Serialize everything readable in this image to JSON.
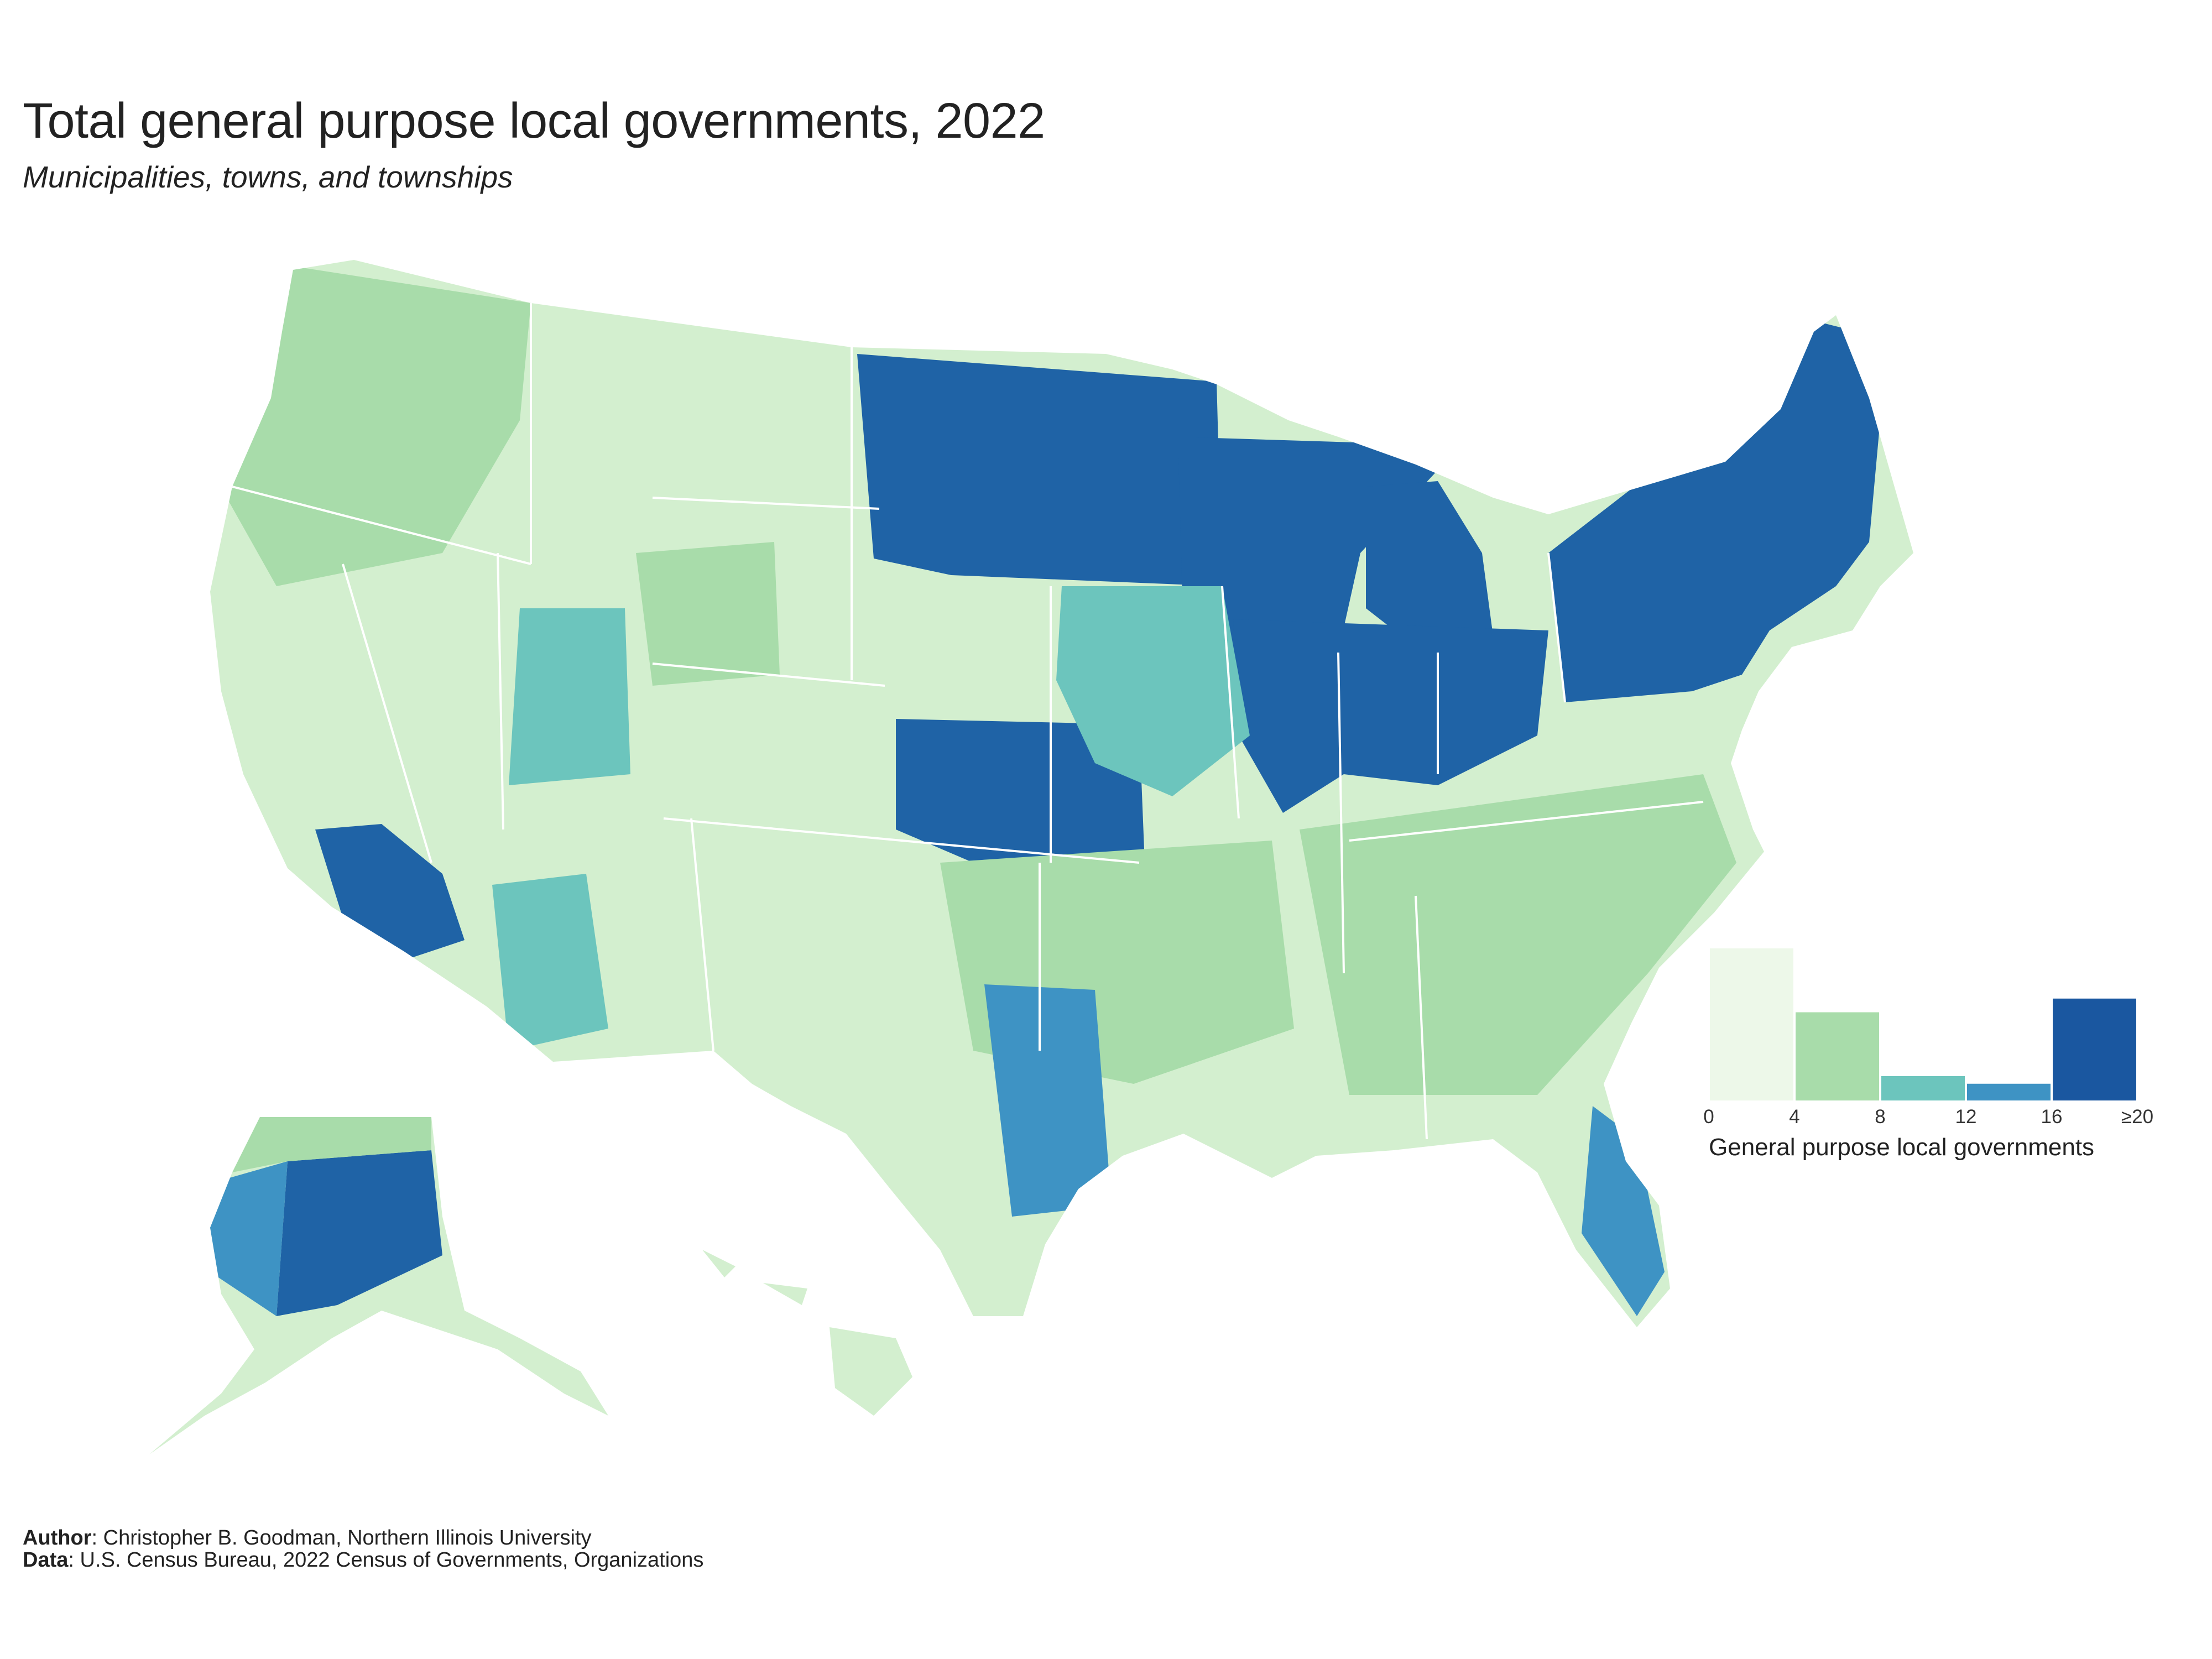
{
  "title": "Total general purpose local governments, 2022",
  "subtitle": "Municipalities, towns, and townships",
  "legend": {
    "title": "General purpose local governments",
    "bins": [
      {
        "label": "0",
        "color": "#edf8e9",
        "share": 1.0
      },
      {
        "label": "4",
        "color": "#a8dcaa",
        "share": 0.58
      },
      {
        "label": "8",
        "color": "#6cc5bd",
        "share": 0.16
      },
      {
        "label": "12",
        "color": "#3e93c4",
        "share": 0.11
      },
      {
        "label": "16",
        "color": "#1a57a0",
        "share": 0.67
      }
    ],
    "tick_labels": [
      "0",
      "4",
      "8",
      "12",
      "16",
      "≥20"
    ]
  },
  "colors": {
    "low": "#d3efcf",
    "light": "#a8dcaa",
    "mid": "#6cc5bd",
    "high": "#3e93c4",
    "top": "#1f63a6",
    "border": "#ffffff"
  },
  "caption": {
    "author_label": "Author",
    "author_text": ": Christopher B. Goodman, Northern Illinois University",
    "data_label": "Data",
    "data_text": ": U.S. Census Bureau, 2022 Census of Governments, Organizations"
  }
}
